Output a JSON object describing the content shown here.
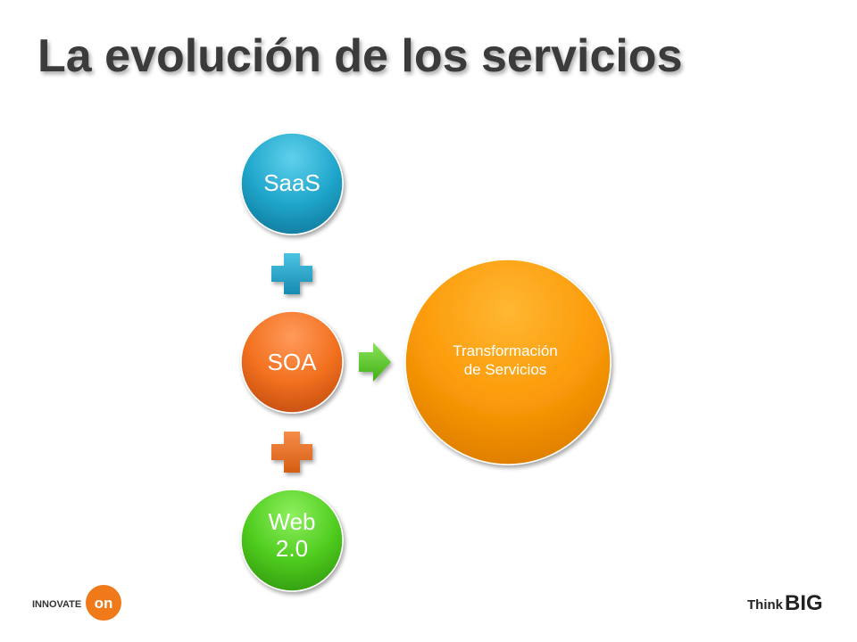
{
  "title": "La evolución de los servicios",
  "nodes": [
    {
      "lines": [
        "SaaS"
      ]
    },
    {
      "lines": [
        "SOA"
      ]
    },
    {
      "lines": [
        "Web",
        "2.0"
      ]
    }
  ],
  "result": {
    "lines": [
      "Transformación",
      "de Servicios"
    ]
  },
  "footer": {
    "left_logo": [
      "INNOVATE",
      "on"
    ],
    "right_logo": [
      "Think",
      "BIG"
    ]
  }
}
